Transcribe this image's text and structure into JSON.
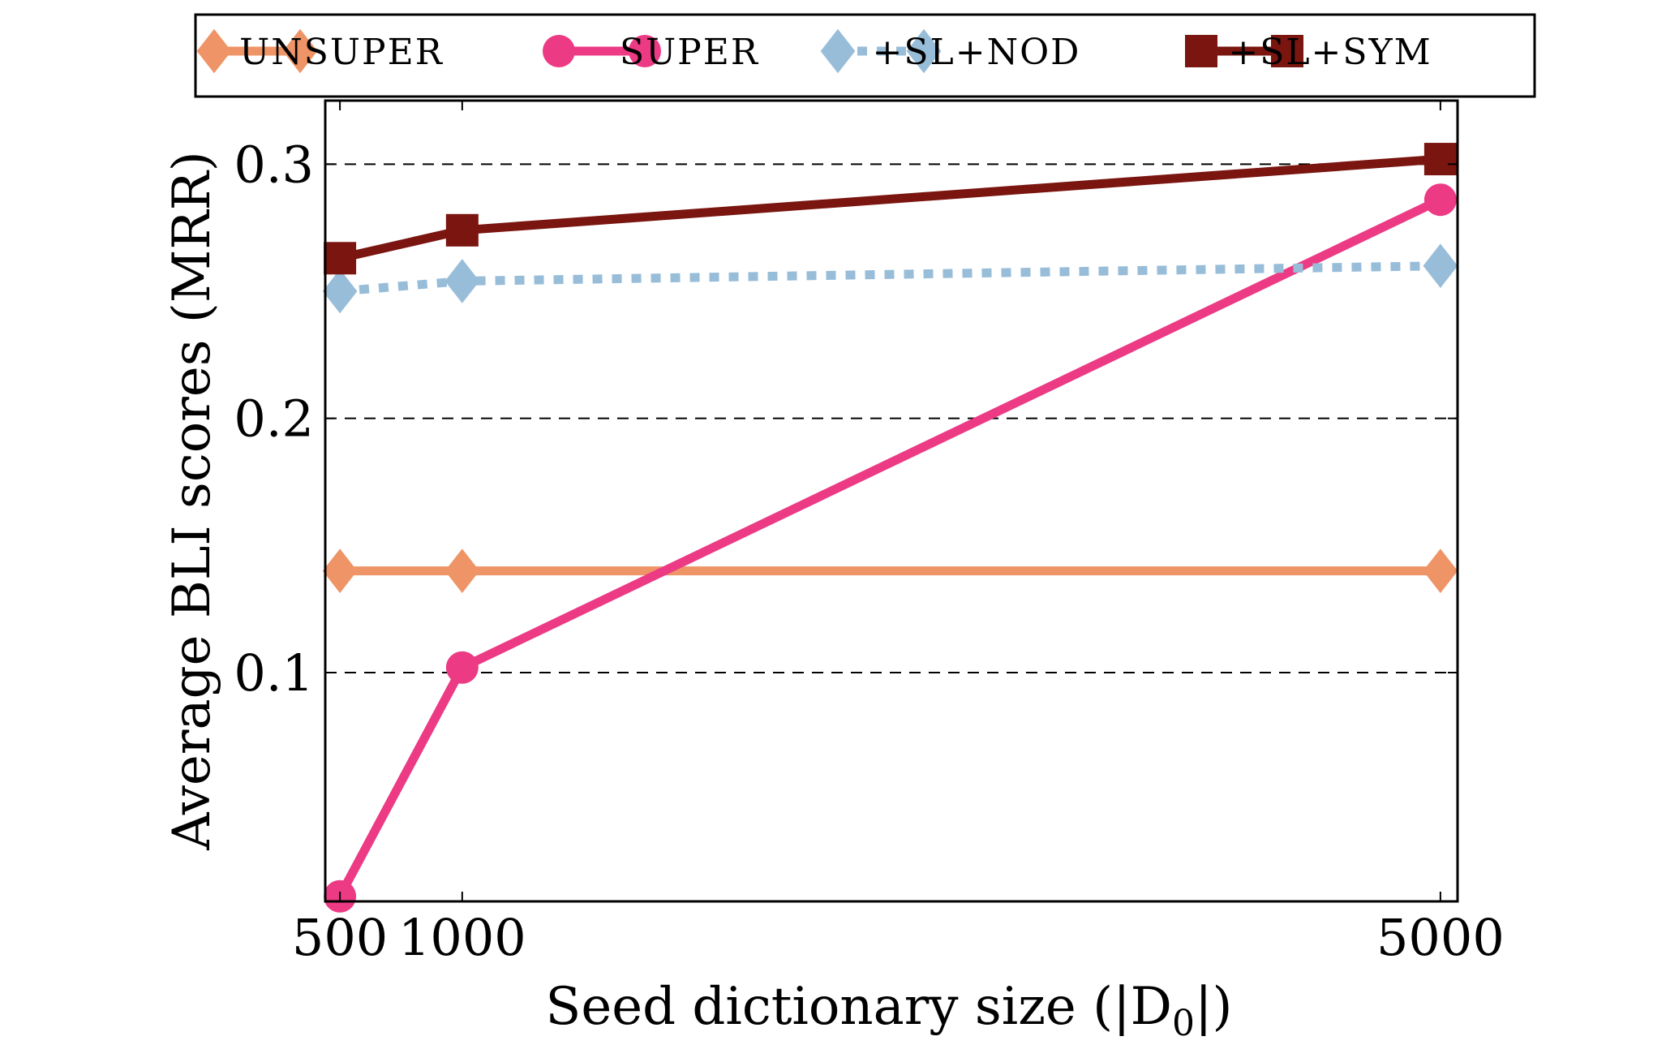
{
  "chart_data": {
    "type": "line",
    "xlabel": "Seed dictionary size (|D",
    "xlabel_subscript": "0",
    "xlabel_suffix": "|)",
    "ylabel": "Average BLI scores (MRR)",
    "x": [
      500,
      1000,
      5000
    ],
    "x_tick_labels": [
      "500",
      "1000",
      "5000"
    ],
    "xlim": [
      440,
      5070
    ],
    "ylim": [
      0.01,
      0.325
    ],
    "y_ticks": [
      0.1,
      0.2,
      0.3
    ],
    "y_tick_labels": [
      "0.1",
      "0.2",
      "0.3"
    ],
    "grid": "horizontal dashed",
    "legend_position": "top (above plot)",
    "series": [
      {
        "name": "UNSUPER",
        "values": [
          0.14,
          0.14,
          0.14
        ],
        "color": "#ee9466",
        "marker": "diamond",
        "line": "solid"
      },
      {
        "name": "SUPER",
        "values": [
          0.012,
          0.102,
          0.286
        ],
        "color": "#ec3a85",
        "marker": "circle",
        "line": "solid"
      },
      {
        "name": "+SL+NOD",
        "values": [
          0.25,
          0.254,
          0.26
        ],
        "color": "#98bdd9",
        "marker": "diamond",
        "line": "dotted"
      },
      {
        "name": "+SL+SYM",
        "values": [
          0.263,
          0.274,
          0.302
        ],
        "color": "#7a1510",
        "marker": "square",
        "line": "solid"
      }
    ]
  }
}
